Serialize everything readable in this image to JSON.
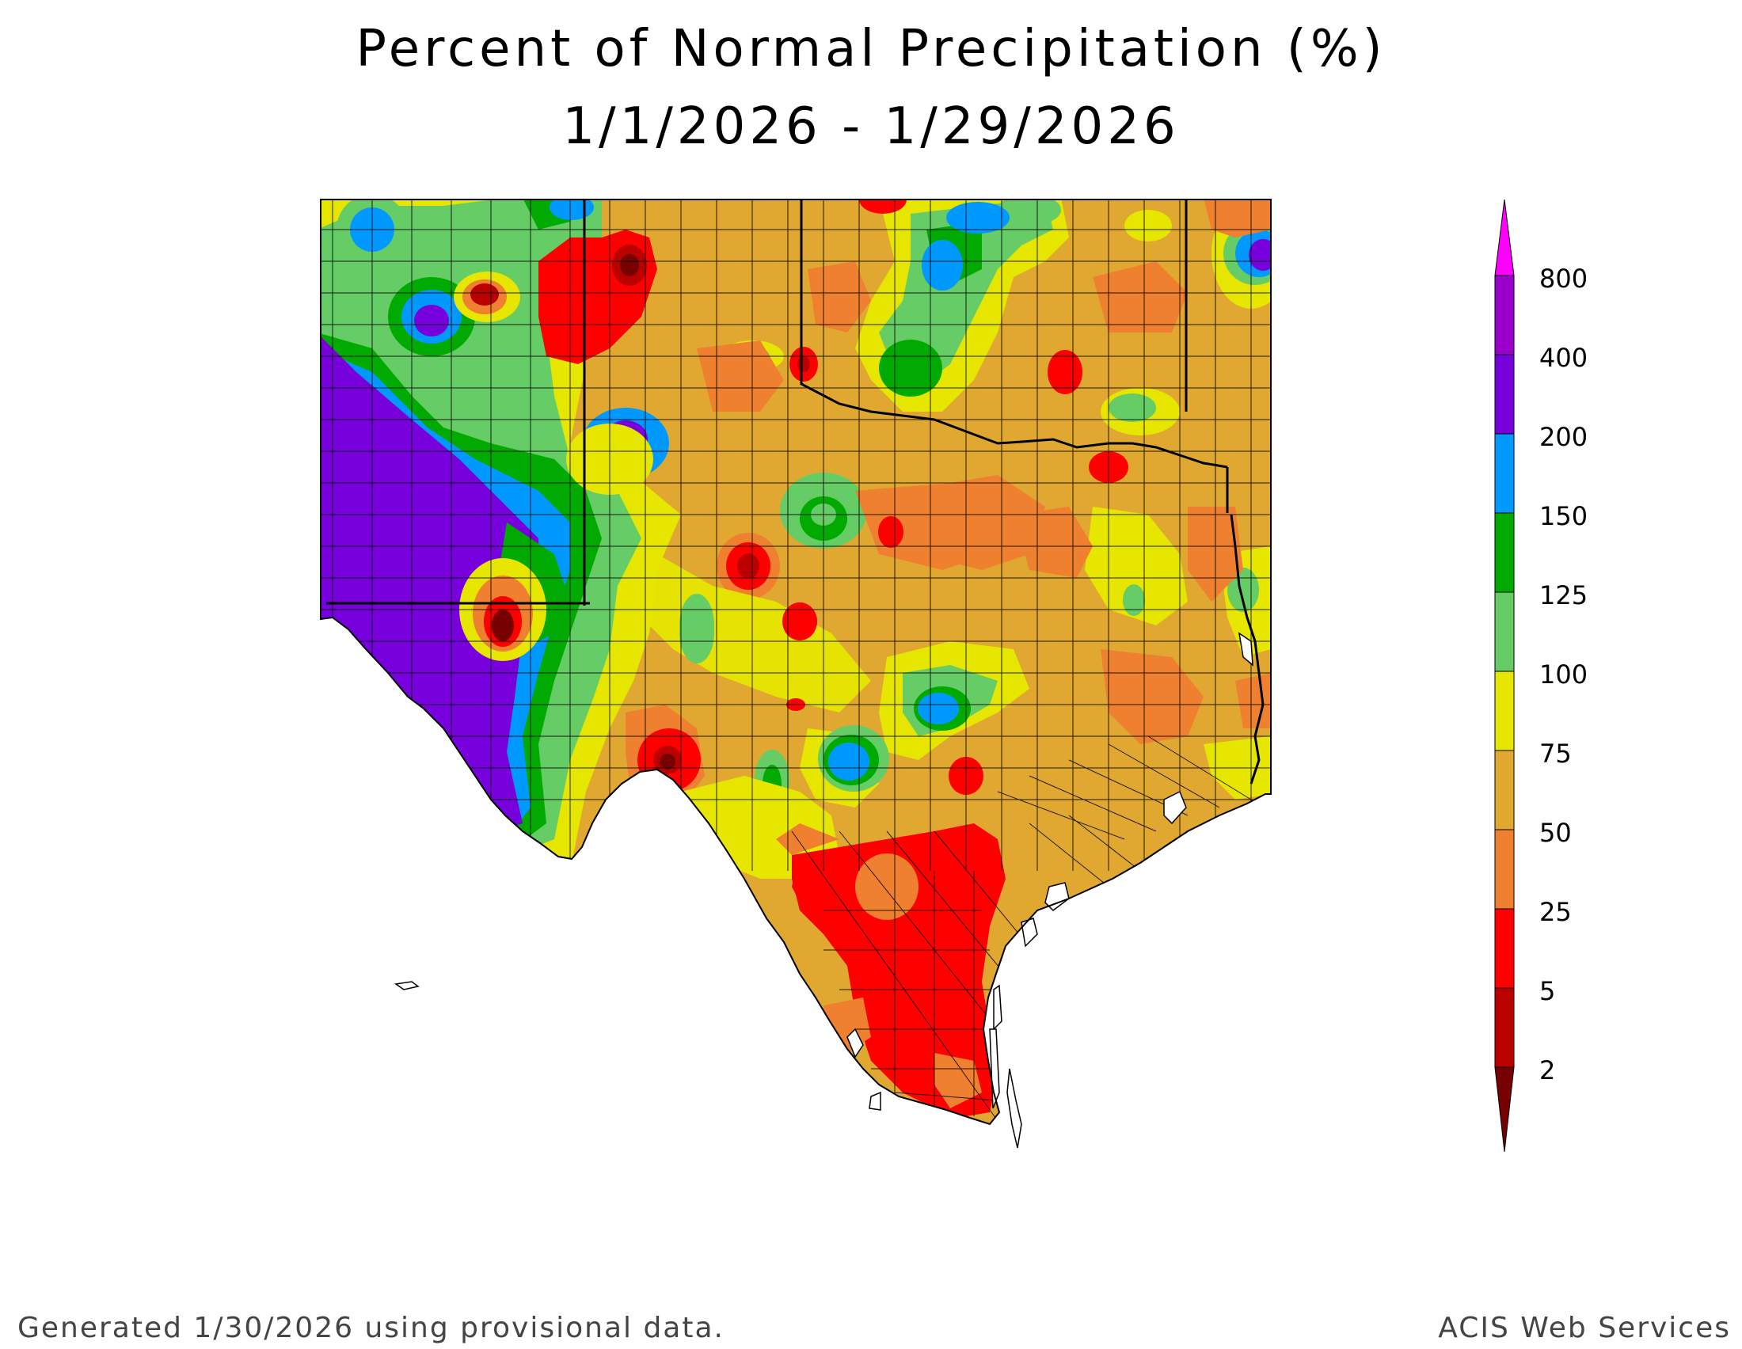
{
  "title": {
    "line1": "Percent of Normal Precipitation (%)",
    "line2": "1/1/2026 - 1/29/2026"
  },
  "legend": {
    "labels": [
      "800",
      "400",
      "200",
      "150",
      "125",
      "100",
      "75",
      "50",
      "25",
      "5",
      "2"
    ],
    "colors": {
      "above_800": "#ff00ff",
      "400_800": "#9900cc",
      "200_400": "#7700dd",
      "150_200": "#0099ff",
      "125_150": "#00aa00",
      "100_125": "#66cc66",
      "75_100": "#e6e600",
      "50_75": "#e0a830",
      "25_50": "#ee8030",
      "5_25": "#ff0000",
      "2_5": "#bb0000",
      "below_2": "#770000"
    }
  },
  "footer": {
    "left": "Generated 1/30/2026  using provisional data.",
    "right": "ACIS Web Services"
  }
}
